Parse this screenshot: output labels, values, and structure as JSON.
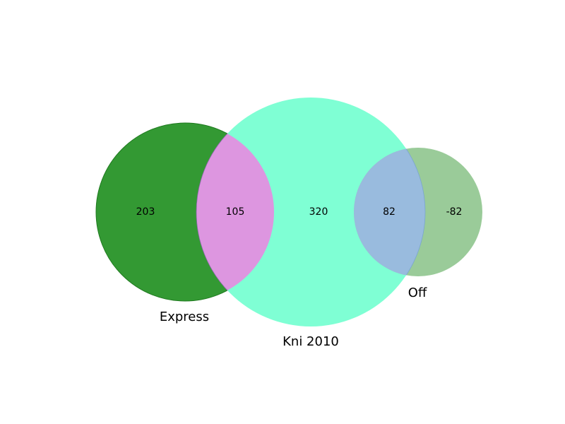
{
  "sets": [
    {
      "id": "express",
      "label": "Express",
      "color": "#008000"
    },
    {
      "id": "kni2010",
      "label": "Kni 2010",
      "color": "#7fffd4"
    },
    {
      "id": "off",
      "label": "Off",
      "color": "#9acb99"
    }
  ],
  "regions": {
    "express_only": {
      "value": "203"
    },
    "express_kni2010": {
      "value": "105",
      "color": "#dd96e0"
    },
    "kni2010_only": {
      "value": "320"
    },
    "kni2010_off": {
      "value": "82",
      "color": "#99bbde"
    },
    "off_only": {
      "value": "-82"
    }
  }
}
